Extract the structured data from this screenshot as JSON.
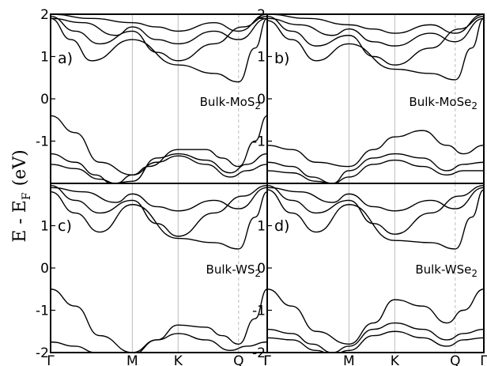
{
  "figure": {
    "ylabel": {
      "main": "E - E",
      "sub": "F",
      "unit": "(eV)"
    }
  },
  "chart_data": [
    {
      "type": "line",
      "panel": "a)",
      "material": "Bulk-MoS",
      "material_sub": "2",
      "x_ticks": [
        "Γ",
        "M",
        "K",
        "Q",
        "Γ"
      ],
      "x_tick_positions": [
        0,
        1,
        1.56,
        2.3,
        2.65
      ],
      "y_ticks": [
        "2",
        "1",
        "0",
        "-1"
      ],
      "ylim": [
        -2,
        2
      ],
      "series": [
        {
          "x": [
            0,
            0.3,
            0.6,
            1,
            1.2,
            1.56,
            1.9,
            2.1,
            2.3,
            2.5,
            2.65
          ],
          "y": [
            -0.4,
            -0.8,
            -1.5,
            -1.8,
            -1.6,
            -1.2,
            -1.2,
            -1.4,
            -1.6,
            -1.0,
            -0.4
          ]
        },
        {
          "x": [
            0,
            0.3,
            0.55,
            0.75,
            1,
            1.3,
            1.56,
            1.9,
            2.2,
            2.4,
            2.65
          ],
          "y": [
            -1.3,
            -1.5,
            -1.8,
            -2.0,
            -1.95,
            -1.4,
            -1.3,
            -1.45,
            -1.75,
            -1.55,
            -1.3
          ]
        },
        {
          "x": [
            0,
            0.3,
            0.6,
            0.8,
            1,
            1.3,
            1.56,
            1.9,
            2.2,
            2.4,
            2.65
          ],
          "y": [
            -1.55,
            -1.65,
            -1.9,
            -2.0,
            -1.8,
            -1.5,
            -1.35,
            -1.55,
            -1.85,
            -1.7,
            -1.55
          ]
        },
        {
          "x": [
            0,
            0.25,
            0.5,
            1,
            1.56,
            2.0,
            2.3,
            2.5,
            2.65
          ],
          "y": [
            1.9,
            1.4,
            0.9,
            1.4,
            0.8,
            0.6,
            0.4,
            1.2,
            1.9
          ]
        },
        {
          "x": [
            0,
            0.3,
            0.6,
            1,
            1.3,
            1.56,
            2.0,
            2.35,
            2.65
          ],
          "y": [
            1.95,
            1.6,
            1.3,
            1.6,
            1.1,
            0.9,
            1.3,
            1.7,
            1.95
          ]
        },
        {
          "x": [
            0,
            0.4,
            0.8,
            1,
            1.3,
            1.56,
            2.0,
            2.3,
            2.65
          ],
          "y": [
            1.9,
            1.8,
            1.5,
            1.7,
            1.4,
            1.3,
            1.6,
            1.4,
            1.9
          ]
        },
        {
          "x": [
            0,
            0.5,
            1,
            1.3,
            1.56,
            2.0,
            2.3,
            2.65
          ],
          "y": [
            2.0,
            1.9,
            1.8,
            1.7,
            1.6,
            1.8,
            1.6,
            2.0
          ]
        }
      ]
    },
    {
      "type": "line",
      "panel": "b)",
      "material": "Bulk-MoSe",
      "material_sub": "2",
      "x_ticks": [
        "Γ",
        "M",
        "K",
        "Q",
        "Γ"
      ],
      "x_tick_positions": [
        0,
        1,
        1.56,
        2.3,
        2.65
      ],
      "y_ticks": [
        "2",
        "1",
        "0",
        "-1"
      ],
      "ylim": [
        -2,
        2
      ],
      "series": [
        {
          "x": [
            0,
            0.3,
            0.6,
            1,
            1.3,
            1.56,
            1.9,
            2.2,
            2.4,
            2.65
          ],
          "y": [
            -1.1,
            -1.2,
            -1.5,
            -1.6,
            -1.2,
            -0.9,
            -0.75,
            -1.1,
            -1.3,
            -1.1
          ]
        },
        {
          "x": [
            0,
            0.3,
            0.55,
            0.8,
            1,
            1.3,
            1.56,
            1.9,
            2.2,
            2.4,
            2.65
          ],
          "y": [
            -1.5,
            -1.6,
            -1.85,
            -2.0,
            -1.7,
            -1.4,
            -1.3,
            -1.4,
            -1.7,
            -1.55,
            -1.5
          ]
        },
        {
          "x": [
            0,
            0.3,
            0.6,
            0.8,
            1,
            1.3,
            1.56,
            1.9,
            2.2,
            2.4,
            2.65
          ],
          "y": [
            -1.7,
            -1.75,
            -1.95,
            -2.0,
            -1.85,
            -1.55,
            -1.45,
            -1.6,
            -1.8,
            -1.7,
            -1.7
          ]
        },
        {
          "x": [
            0,
            0.3,
            0.6,
            1,
            1.56,
            2.0,
            2.3,
            2.5,
            2.65
          ],
          "y": [
            1.85,
            1.4,
            0.9,
            1.3,
            0.7,
            0.6,
            0.45,
            1.2,
            1.9
          ]
        },
        {
          "x": [
            0,
            0.3,
            0.6,
            1,
            1.3,
            1.56,
            2.0,
            2.35,
            2.65
          ],
          "y": [
            1.95,
            1.6,
            1.25,
            1.5,
            1.0,
            0.8,
            1.2,
            1.65,
            1.95
          ]
        },
        {
          "x": [
            0,
            0.4,
            0.8,
            1,
            1.3,
            1.56,
            2.0,
            2.3,
            2.65
          ],
          "y": [
            1.9,
            1.75,
            1.5,
            1.65,
            1.35,
            1.25,
            1.55,
            1.35,
            1.9
          ]
        },
        {
          "x": [
            0,
            0.5,
            1,
            1.3,
            1.56,
            2.0,
            2.3,
            2.65
          ],
          "y": [
            2.0,
            1.9,
            1.75,
            1.65,
            1.55,
            1.75,
            1.55,
            2.0
          ]
        }
      ]
    },
    {
      "type": "line",
      "panel": "c)",
      "material": "Bulk-WS",
      "material_sub": "2",
      "x_ticks": [
        "Γ",
        "M",
        "K",
        "Q",
        "Γ"
      ],
      "x_tick_positions": [
        0,
        1,
        1.56,
        2.3,
        2.65
      ],
      "y_ticks": [
        "1",
        "0",
        "-1",
        "-2"
      ],
      "ylim": [
        -2,
        2
      ],
      "series": [
        {
          "x": [
            0,
            0.3,
            0.6,
            1,
            1.3,
            1.56,
            1.9,
            2.1,
            2.3,
            2.5,
            2.65
          ],
          "y": [
            -0.5,
            -0.9,
            -1.6,
            -2.0,
            -1.7,
            -1.35,
            -1.4,
            -1.6,
            -1.8,
            -1.2,
            -0.5
          ]
        },
        {
          "x": [
            0,
            0.3,
            0.55,
            0.75,
            1,
            1.3,
            1.56,
            1.9,
            2.2,
            2.4,
            2.65
          ],
          "y": [
            -1.75,
            -1.85,
            -2.0,
            -2.1,
            -2.05,
            -1.7,
            -1.55,
            -1.7,
            -1.95,
            -1.85,
            -1.75
          ]
        },
        {
          "x": [
            0,
            0.3,
            0.6,
            1,
            1.56,
            2.0,
            2.3,
            2.5,
            2.65
          ],
          "y": [
            1.8,
            1.3,
            0.85,
            1.5,
            0.7,
            0.6,
            0.45,
            1.2,
            1.8
          ]
        },
        {
          "x": [
            0,
            0.3,
            0.6,
            1,
            1.3,
            1.56,
            2.0,
            2.35,
            2.65
          ],
          "y": [
            1.95,
            1.6,
            1.3,
            1.6,
            1.05,
            0.75,
            1.3,
            1.7,
            1.95
          ]
        },
        {
          "x": [
            0,
            0.4,
            0.8,
            1,
            1.3,
            1.56,
            2.0,
            2.3,
            2.65
          ],
          "y": [
            1.9,
            1.8,
            1.55,
            1.75,
            1.45,
            1.35,
            1.6,
            1.4,
            1.9
          ]
        }
      ]
    },
    {
      "type": "line",
      "panel": "d)",
      "material": "Bulk-WSe",
      "material_sub": "2",
      "x_ticks": [
        "Γ",
        "M",
        "K",
        "Q",
        "Γ"
      ],
      "x_tick_positions": [
        0,
        1,
        1.56,
        2.3,
        2.65
      ],
      "y_ticks": [
        "1",
        "0",
        "-1",
        "-2"
      ],
      "ylim": [
        -2,
        2
      ],
      "series": [
        {
          "x": [
            0,
            0.3,
            0.6,
            1,
            1.3,
            1.56,
            1.9,
            2.2,
            2.4,
            2.65
          ],
          "y": [
            -0.5,
            -0.9,
            -1.5,
            -1.8,
            -1.3,
            -0.75,
            -0.9,
            -1.3,
            -1.0,
            -0.5
          ]
        },
        {
          "x": [
            0,
            0.3,
            0.55,
            0.8,
            1,
            1.3,
            1.56,
            1.9,
            2.2,
            2.4,
            2.65
          ],
          "y": [
            -1.45,
            -1.55,
            -1.8,
            -2.0,
            -1.85,
            -1.45,
            -1.3,
            -1.45,
            -1.7,
            -1.55,
            -1.45
          ]
        },
        {
          "x": [
            0,
            0.3,
            0.6,
            0.8,
            1,
            1.3,
            1.56,
            1.9,
            2.2,
            2.4,
            2.65
          ],
          "y": [
            -1.65,
            -1.7,
            -1.95,
            -2.05,
            -1.95,
            -1.6,
            -1.5,
            -1.65,
            -1.85,
            -1.7,
            -1.65
          ]
        },
        {
          "x": [
            0,
            0.3,
            0.6,
            1,
            1.56,
            2.0,
            2.3,
            2.5,
            2.65
          ],
          "y": [
            1.85,
            1.3,
            0.85,
            1.5,
            0.65,
            0.6,
            0.45,
            1.2,
            1.85
          ]
        },
        {
          "x": [
            0,
            0.3,
            0.6,
            1,
            1.3,
            1.56,
            2.0,
            2.35,
            2.65
          ],
          "y": [
            1.95,
            1.6,
            1.3,
            1.6,
            1.05,
            0.8,
            1.3,
            1.7,
            1.95
          ]
        },
        {
          "x": [
            0,
            0.4,
            0.8,
            1,
            1.3,
            1.56,
            2.0,
            2.3,
            2.65
          ],
          "y": [
            1.9,
            1.8,
            1.55,
            1.75,
            1.45,
            1.35,
            1.6,
            1.4,
            1.9
          ]
        }
      ]
    }
  ]
}
